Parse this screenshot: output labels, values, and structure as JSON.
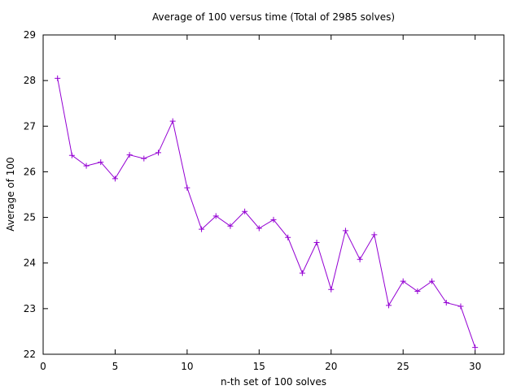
{
  "chart_data": {
    "type": "line",
    "title": "Average of 100 versus time (Total of 2985 solves)",
    "xlabel": "n-th set of 100 solves",
    "ylabel": "Average of 100",
    "xlim": [
      0,
      32
    ],
    "ylim": [
      22,
      29
    ],
    "xticks": [
      0,
      5,
      10,
      15,
      20,
      25,
      30
    ],
    "yticks": [
      22,
      23,
      24,
      25,
      26,
      27,
      28,
      29
    ],
    "grid": false,
    "legend": "none",
    "marker": "plus",
    "color": "#9400d3",
    "x": [
      1,
      2,
      3,
      4,
      5,
      6,
      7,
      8,
      9,
      10,
      11,
      12,
      13,
      14,
      15,
      16,
      17,
      18,
      19,
      20,
      21,
      22,
      23,
      24,
      25,
      26,
      27,
      28,
      29,
      30
    ],
    "values": [
      28.05,
      26.36,
      26.13,
      26.21,
      25.85,
      26.37,
      26.29,
      26.42,
      27.11,
      25.65,
      24.74,
      25.03,
      24.81,
      25.13,
      24.76,
      24.95,
      24.56,
      23.78,
      24.45,
      23.42,
      24.71,
      24.08,
      24.62,
      23.07,
      23.6,
      23.38,
      23.6,
      23.13,
      23.05,
      22.15
    ]
  }
}
